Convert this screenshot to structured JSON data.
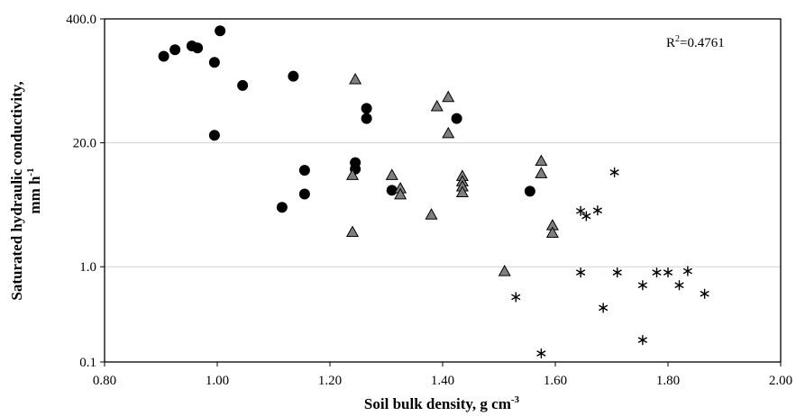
{
  "chart_data": {
    "type": "scatter",
    "xlabel": "Soil bulk density, g cm",
    "xlabel_sup": "-3",
    "ylabel_line1": "Saturated hydraulic conductivity,",
    "ylabel_line2": "mm h",
    "ylabel_sup": "-1",
    "x_ticks": [
      "0.80",
      "1.00",
      "1.20",
      "1.40",
      "1.60",
      "1.80",
      "2.00"
    ],
    "x_tick_values": [
      0.8,
      1.0,
      1.2,
      1.4,
      1.6,
      1.8,
      2.0
    ],
    "y_ticks": [
      "0.1",
      "1.0",
      "20.0",
      "400.0"
    ],
    "y_tick_values": [
      0.1,
      1.0,
      20.0,
      400.0
    ],
    "xlim": [
      0.8,
      2.0
    ],
    "ylim": [
      0.1,
      400.0
    ],
    "y_scale": "log",
    "grid": "horizontal",
    "annotation": {
      "text_main": "R",
      "text_sup": "2",
      "text_rest": "=0.4761"
    },
    "series": [
      {
        "marker": "circle",
        "color": "#000000",
        "points": [
          [
            0.905,
            162
          ],
          [
            0.925,
            190
          ],
          [
            0.955,
            208
          ],
          [
            0.965,
            198
          ],
          [
            0.995,
            140
          ],
          [
            1.005,
            300
          ],
          [
            0.995,
            24
          ],
          [
            1.045,
            80
          ],
          [
            1.135,
            100
          ],
          [
            1.265,
            46
          ],
          [
            1.265,
            36
          ],
          [
            1.425,
            36
          ],
          [
            1.245,
            12.4
          ],
          [
            1.245,
            10.6
          ],
          [
            1.155,
            10.3
          ],
          [
            1.155,
            5.8
          ],
          [
            1.115,
            4.2
          ],
          [
            1.31,
            6.35
          ],
          [
            1.555,
            6.2
          ]
        ]
      },
      {
        "marker": "triangle",
        "color": "#808080",
        "points": [
          [
            1.245,
            92
          ],
          [
            1.39,
            48
          ],
          [
            1.41,
            60
          ],
          [
            1.41,
            25
          ],
          [
            1.24,
            9.1
          ],
          [
            1.31,
            9.1
          ],
          [
            1.325,
            6.6
          ],
          [
            1.325,
            5.7
          ],
          [
            1.435,
            8.9
          ],
          [
            1.435,
            7.8
          ],
          [
            1.435,
            6.9
          ],
          [
            1.435,
            6.0
          ],
          [
            1.38,
            3.5
          ],
          [
            1.24,
            2.3
          ],
          [
            1.575,
            12.8
          ],
          [
            1.575,
            9.5
          ],
          [
            1.595,
            2.7
          ],
          [
            1.595,
            2.25
          ],
          [
            1.51,
            0.89
          ]
        ]
      },
      {
        "marker": "asterisk",
        "color": "#000000",
        "points": [
          [
            1.705,
            9.8
          ],
          [
            1.645,
            3.85
          ],
          [
            1.655,
            3.4
          ],
          [
            1.675,
            3.9
          ],
          [
            1.645,
            0.87
          ],
          [
            1.71,
            0.87
          ],
          [
            1.78,
            0.87
          ],
          [
            1.8,
            0.87
          ],
          [
            1.835,
            0.9
          ],
          [
            1.755,
            0.64
          ],
          [
            1.82,
            0.64
          ],
          [
            1.865,
            0.52
          ],
          [
            1.53,
            0.48
          ],
          [
            1.685,
            0.37
          ],
          [
            1.755,
            0.17
          ],
          [
            1.575,
            0.123
          ]
        ]
      }
    ]
  }
}
